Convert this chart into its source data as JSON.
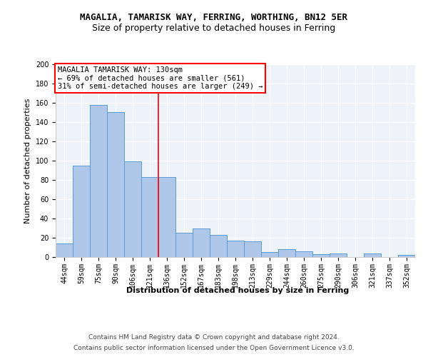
{
  "title1": "MAGALIA, TAMARISK WAY, FERRING, WORTHING, BN12 5ER",
  "title2": "Size of property relative to detached houses in Ferring",
  "xlabel": "Distribution of detached houses by size in Ferring",
  "ylabel": "Number of detached properties",
  "categories": [
    "44sqm",
    "59sqm",
    "75sqm",
    "90sqm",
    "106sqm",
    "121sqm",
    "136sqm",
    "152sqm",
    "167sqm",
    "183sqm",
    "198sqm",
    "213sqm",
    "229sqm",
    "244sqm",
    "260sqm",
    "275sqm",
    "290sqm",
    "306sqm",
    "321sqm",
    "337sqm",
    "352sqm"
  ],
  "values": [
    14,
    95,
    158,
    150,
    99,
    83,
    83,
    25,
    30,
    23,
    17,
    16,
    5,
    8,
    6,
    3,
    4,
    0,
    4,
    0,
    2
  ],
  "bar_color": "#aec6e8",
  "bar_edge_color": "#5b9bd5",
  "vline_x": 5.5,
  "vline_color": "red",
  "annotation_lines": [
    "MAGALIA TAMARISK WAY: 130sqm",
    "← 69% of detached houses are smaller (561)",
    "31% of semi-detached houses are larger (249) →"
  ],
  "annotation_box_color": "white",
  "annotation_box_edge": "red",
  "ylim": [
    0,
    200
  ],
  "yticks": [
    0,
    20,
    40,
    60,
    80,
    100,
    120,
    140,
    160,
    180,
    200
  ],
  "footnote1": "Contains HM Land Registry data © Crown copyright and database right 2024.",
  "footnote2": "Contains public sector information licensed under the Open Government Licence v3.0.",
  "bg_color": "#eef2f9",
  "grid_color": "white",
  "title1_fontsize": 9,
  "title2_fontsize": 9,
  "axis_label_fontsize": 8,
  "tick_fontsize": 7,
  "annotation_fontsize": 7.5,
  "footnote_fontsize": 6.5
}
